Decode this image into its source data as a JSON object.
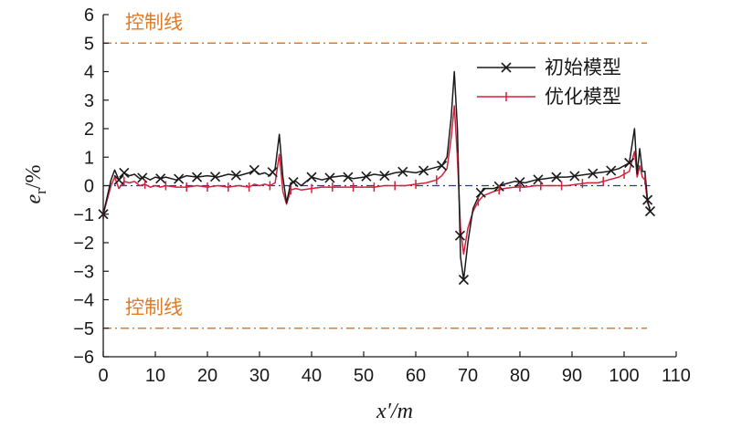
{
  "chart_data": {
    "type": "line",
    "xlabel": "x′/m",
    "ylabel": "e_r/%",
    "xlim": [
      0,
      110
    ],
    "ylim": [
      -6,
      6
    ],
    "xticks": [
      0,
      10,
      20,
      30,
      40,
      50,
      60,
      70,
      80,
      90,
      100,
      110
    ],
    "yticks": [
      -6,
      -5,
      -4,
      -3,
      -2,
      -1,
      0,
      1,
      2,
      3,
      4,
      5,
      6
    ],
    "control_lines": [
      {
        "label": "控制线",
        "value": 5
      },
      {
        "label": "控制线",
        "value": -5
      }
    ],
    "zero_line": 0,
    "legend_position": "top-right",
    "series": [
      {
        "name": "初始模型",
        "color": "#1a1a1a",
        "marker": "x",
        "x": [
          0,
          1.5,
          2.2,
          3,
          4,
          5,
          6,
          7,
          8,
          9,
          10,
          11,
          12,
          14,
          16,
          18,
          20,
          22,
          24,
          26,
          28,
          29,
          30,
          31,
          32,
          33,
          33.8,
          34.5,
          35.2,
          36,
          37,
          38,
          40,
          42,
          44,
          46,
          48,
          50,
          52,
          54,
          56,
          58,
          60,
          62,
          64,
          65,
          66,
          66.8,
          67.4,
          68,
          68.6,
          69.2,
          70,
          71,
          72,
          73,
          75,
          77,
          79,
          81,
          83,
          85,
          87,
          89,
          91,
          93,
          95,
          97,
          99,
          100,
          101,
          102,
          102.5,
          103,
          103.5,
          104,
          104.5,
          105
        ],
        "y": [
          -1.0,
          0.2,
          0.55,
          0.2,
          0.45,
          0.35,
          0.4,
          0.25,
          0.3,
          0.2,
          0.3,
          0.25,
          0.3,
          0.2,
          0.35,
          0.3,
          0.35,
          0.3,
          0.4,
          0.35,
          0.45,
          0.55,
          0.4,
          0.45,
          0.35,
          0.6,
          1.8,
          0.3,
          -0.6,
          0.1,
          0.15,
          0.0,
          0.3,
          0.2,
          0.3,
          0.35,
          0.25,
          0.3,
          0.4,
          0.35,
          0.45,
          0.5,
          0.45,
          0.55,
          0.65,
          0.7,
          1.0,
          2.4,
          4.0,
          2.0,
          -2.5,
          -3.3,
          -2.0,
          -0.8,
          -0.4,
          -0.1,
          -0.1,
          0.05,
          0.15,
          0.1,
          0.2,
          0.25,
          0.3,
          0.3,
          0.35,
          0.4,
          0.45,
          0.5,
          0.6,
          0.7,
          0.8,
          2.0,
          0.4,
          1.3,
          0.5,
          0.5,
          -0.5,
          -0.9
        ],
        "marker_x": [
          0,
          3,
          4,
          7.5,
          11,
          14.5,
          18,
          21.5,
          25.5,
          29,
          32.5,
          36.5,
          40,
          43.5,
          47,
          50.5,
          54,
          57.5,
          61.5,
          65,
          68.5,
          69.2,
          72.5,
          76,
          80,
          83.5,
          87,
          90.5,
          94,
          97.5,
          101,
          104.5,
          105
        ]
      },
      {
        "name": "优化模型",
        "color": "#d0223d",
        "marker": "|",
        "x": [
          0,
          1.5,
          2.2,
          3,
          4,
          5,
          6,
          7,
          8,
          9,
          10,
          11,
          12,
          14,
          16,
          18,
          20,
          22,
          24,
          26,
          28,
          29,
          30,
          31,
          32,
          33,
          33.8,
          34.5,
          35.2,
          36,
          37,
          38,
          40,
          42,
          44,
          46,
          48,
          50,
          52,
          54,
          56,
          58,
          60,
          62,
          64,
          65,
          66,
          66.8,
          67.4,
          68,
          68.6,
          69.2,
          70,
          71,
          72,
          73,
          75,
          77,
          79,
          81,
          83,
          85,
          87,
          89,
          91,
          93,
          95,
          97,
          99,
          100,
          101,
          102,
          102.5,
          103,
          103.5,
          104,
          104.5,
          105
        ],
        "y": [
          -1.0,
          0.0,
          0.3,
          -0.1,
          0.15,
          0.1,
          0.15,
          0.0,
          0.05,
          -0.05,
          0.0,
          -0.05,
          0.0,
          -0.05,
          -0.05,
          0.0,
          -0.05,
          0.0,
          -0.05,
          0.0,
          -0.05,
          0.05,
          0.0,
          0.05,
          0.0,
          0.1,
          1.1,
          -0.2,
          -0.65,
          -0.15,
          -0.1,
          -0.15,
          -0.1,
          -0.05,
          -0.05,
          -0.05,
          -0.05,
          -0.05,
          -0.05,
          0.0,
          0.0,
          0.0,
          0.05,
          0.1,
          0.2,
          0.35,
          0.6,
          1.7,
          2.8,
          1.0,
          -1.5,
          -2.4,
          -1.5,
          -0.9,
          -0.55,
          -0.35,
          -0.2,
          -0.1,
          -0.05,
          -0.05,
          0.0,
          0.0,
          0.0,
          0.0,
          0.05,
          0.1,
          0.1,
          0.2,
          0.3,
          0.4,
          0.5,
          1.2,
          0.3,
          0.7,
          0.3,
          0.2,
          -0.6,
          -0.8
        ],
        "marker_x": [
          0,
          4,
          8,
          12,
          16,
          20,
          24,
          28,
          32,
          36,
          40,
          44,
          48,
          52,
          56,
          60,
          64,
          68,
          72,
          76,
          80,
          84,
          88,
          92,
          96,
          100,
          104
        ]
      }
    ]
  }
}
